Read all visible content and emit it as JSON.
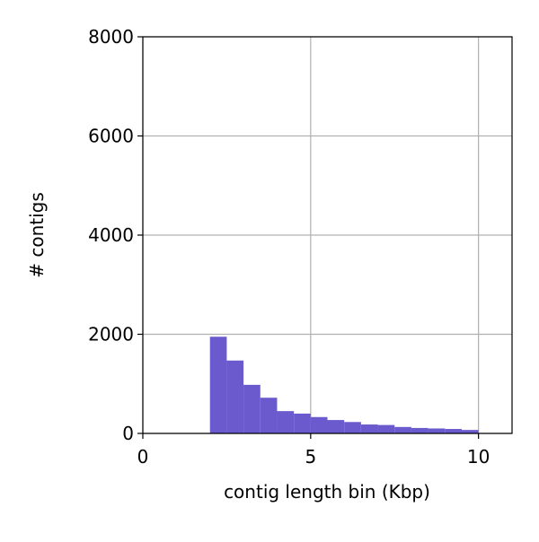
{
  "chart_data": {
    "type": "histogram",
    "xlabel": "contig length bin (Kbp)",
    "ylabel": "# contigs",
    "bins": [
      2,
      2.5,
      3,
      3.5,
      4,
      4.5,
      5,
      5.5,
      6,
      6.5,
      7,
      7.5,
      8,
      8.5,
      9,
      9.5,
      10
    ],
    "values": [
      1950,
      1470,
      980,
      720,
      450,
      400,
      330,
      270,
      230,
      180,
      170,
      130,
      110,
      100,
      90,
      70
    ],
    "color": "#6a5acd",
    "xlim": [
      0,
      11
    ],
    "xticks": [
      0,
      5,
      10
    ],
    "ylim": [
      0,
      8000
    ],
    "yticks": [
      0,
      2000,
      4000,
      6000,
      8000
    ],
    "grid": true
  }
}
